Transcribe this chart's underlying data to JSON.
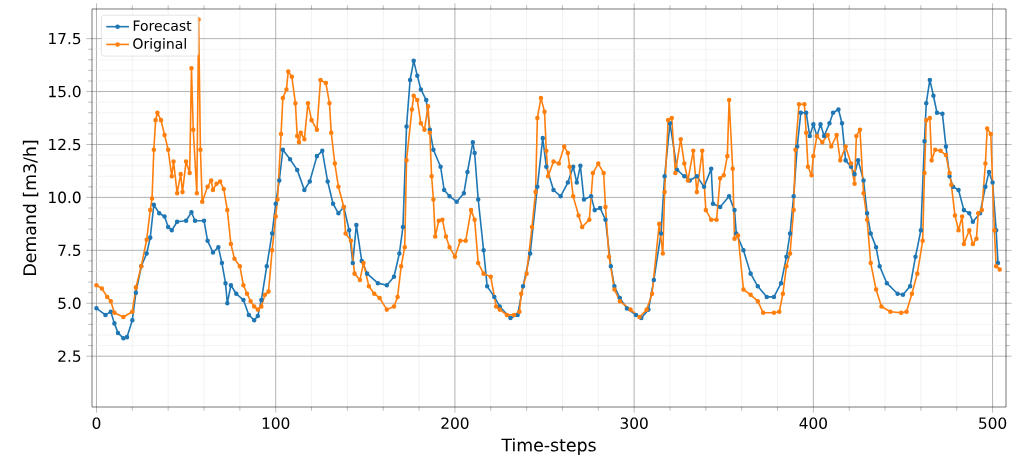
{
  "chart_data": {
    "type": "line",
    "xlabel": "Time-steps",
    "ylabel": "Demand [m3/h]",
    "xlim": [
      -2.5,
      507.5
    ],
    "ylim": [
      0.1,
      18.9
    ],
    "xticks": [
      0,
      100,
      200,
      300,
      400,
      500
    ],
    "yticks": [
      {
        "value": 2.5,
        "label": "2.5"
      },
      {
        "value": 5,
        "label": "5.0"
      },
      {
        "value": 7.5,
        "label": "7.5"
      },
      {
        "value": 10,
        "label": "10.0"
      },
      {
        "value": 12.5,
        "label": "12.5"
      },
      {
        "value": 15,
        "label": "15.0"
      },
      {
        "value": 17.5,
        "label": "17.5"
      }
    ],
    "grid": true,
    "legend": "top left",
    "marker": "circle",
    "line_style": "solid",
    "series": [
      {
        "name": "Forecast",
        "color": "#1f77b4",
        "x": [
          0,
          5,
          8,
          10,
          12,
          15,
          17,
          20,
          22,
          25,
          28,
          30,
          32,
          35,
          38,
          40,
          42,
          45,
          50,
          53,
          55,
          60,
          62,
          65,
          68,
          70,
          72,
          73,
          75,
          78,
          82,
          85,
          88,
          90,
          92,
          95,
          98,
          100,
          102,
          104,
          108,
          112,
          116,
          119,
          123,
          126,
          129,
          132,
          135,
          138,
          141,
          143,
          145,
          148,
          151,
          157,
          162,
          166,
          169,
          171,
          173,
          175,
          177,
          179,
          181,
          184,
          186,
          188,
          192,
          194,
          197,
          201,
          205,
          207,
          210,
          211,
          213,
          216,
          218,
          222,
          225,
          231,
          235,
          238,
          242,
          246,
          249,
          251,
          255,
          259,
          263,
          266,
          268,
          270,
          272,
          276,
          278,
          281,
          284,
          287,
          289,
          292,
          296,
          301,
          304,
          308,
          311,
          315,
          317,
          320,
          324,
          328,
          331,
          335,
          339,
          343,
          344,
          348,
          353,
          356,
          357,
          361,
          365,
          369,
          374,
          378,
          382,
          385,
          387,
          389,
          391,
          393,
          396,
          398,
          400,
          402,
          404,
          406,
          409,
          411,
          414,
          416,
          418,
          421,
          423,
          425,
          428,
          430,
          432,
          435,
          437,
          441,
          447,
          450,
          454,
          457,
          460,
          462,
          463,
          465,
          467,
          469,
          472,
          474,
          476,
          478,
          481,
          484,
          487,
          489,
          493,
          496,
          498,
          500,
          502,
          503
        ],
        "values": [
          4.76,
          4.45,
          4.6,
          4.05,
          3.6,
          3.35,
          3.4,
          4.2,
          5.5,
          6.75,
          7.35,
          8.1,
          9.65,
          9.25,
          9.1,
          8.6,
          8.45,
          8.85,
          8.9,
          9.3,
          8.9,
          8.9,
          7.95,
          7.4,
          7.65,
          6.9,
          5.95,
          5.0,
          5.85,
          5.45,
          5.15,
          4.45,
          4.2,
          4.4,
          5.15,
          6.75,
          8.3,
          9.7,
          10.8,
          12.25,
          11.8,
          11.3,
          10.35,
          10.75,
          11.95,
          12.2,
          10.75,
          9.7,
          9.25,
          9.55,
          8.45,
          6.9,
          8.7,
          7.0,
          6.4,
          5.95,
          5.85,
          6.25,
          7.35,
          8.6,
          13.35,
          15.55,
          16.45,
          15.75,
          15.1,
          14.6,
          13.2,
          12.25,
          11.45,
          10.35,
          10.05,
          9.8,
          10.2,
          11.2,
          12.6,
          12.1,
          9.9,
          7.5,
          5.8,
          5.3,
          4.85,
          4.3,
          4.45,
          5.8,
          7.35,
          10.5,
          12.8,
          11.45,
          10.35,
          10.05,
          10.7,
          11.45,
          10.7,
          11.5,
          9.9,
          10.05,
          9.4,
          9.5,
          8.95,
          6.75,
          5.8,
          5.25,
          4.75,
          4.45,
          4.3,
          4.7,
          6.1,
          8.3,
          11.0,
          13.5,
          11.3,
          11.0,
          10.8,
          11.0,
          10.5,
          11.35,
          9.7,
          9.55,
          10.05,
          9.4,
          8.3,
          7.5,
          6.4,
          5.8,
          5.3,
          5.3,
          5.95,
          7.2,
          8.3,
          10.05,
          12.4,
          14.0,
          14.0,
          12.9,
          13.45,
          12.9,
          13.45,
          12.9,
          13.5,
          14.0,
          14.15,
          13.5,
          11.75,
          11.45,
          11.1,
          11.75,
          10.8,
          9.25,
          8.3,
          7.65,
          6.75,
          5.95,
          5.45,
          5.4,
          5.8,
          7.2,
          8.45,
          12.65,
          14.45,
          15.55,
          14.8,
          14.0,
          13.95,
          12.4,
          11.0,
          10.5,
          10.35,
          9.4,
          9.25,
          8.85,
          9.25,
          10.5,
          11.2,
          10.7,
          8.45,
          6.9
        ]
      },
      {
        "name": "Original",
        "color": "#ff7f0e",
        "x": [
          0,
          3,
          6,
          8,
          10,
          15,
          20,
          22,
          25,
          28,
          30,
          31,
          32,
          33,
          34,
          36,
          38,
          40,
          42,
          43,
          45,
          47,
          48,
          50,
          52,
          53,
          54,
          56,
          57,
          58,
          59,
          62,
          64,
          65,
          67,
          69,
          71,
          73,
          75,
          77,
          80,
          82,
          84,
          86,
          88,
          90,
          92,
          94,
          96,
          98,
          100,
          101,
          103,
          104,
          106,
          107,
          109,
          111,
          112,
          113,
          114,
          116,
          118,
          120,
          123,
          125,
          128,
          130,
          131,
          133,
          135,
          138,
          139,
          142,
          144,
          147,
          149,
          152,
          155,
          158,
          162,
          166,
          168,
          170,
          172,
          173,
          176,
          177,
          179,
          181,
          183,
          185,
          186,
          187,
          188,
          189,
          191,
          193,
          195,
          197,
          200,
          203,
          206,
          209,
          211,
          213,
          216,
          220,
          223,
          225,
          229,
          233,
          236,
          237,
          240,
          243,
          245,
          246,
          248,
          250,
          251,
          252,
          255,
          258,
          261,
          263,
          264,
          266,
          269,
          271,
          275,
          277,
          280,
          283,
          284,
          286,
          289,
          292,
          298,
          303,
          307,
          310,
          314,
          316,
          317,
          319,
          321,
          323,
          326,
          328,
          330,
          333,
          335,
          338,
          340,
          343,
          346,
          348,
          350,
          352,
          353,
          355,
          356,
          358,
          361,
          365,
          369,
          372,
          378,
          381,
          383,
          385,
          387,
          389,
          390,
          392,
          395,
          396,
          397,
          399,
          400,
          402,
          405,
          408,
          410,
          413,
          415,
          418,
          421,
          423,
          424,
          426,
          428,
          430,
          432,
          435,
          438,
          443,
          449,
          452,
          455,
          458,
          461,
          462,
          463,
          465,
          466,
          468,
          471,
          474,
          476,
          477,
          479,
          481,
          483,
          484,
          487,
          489,
          491,
          492,
          494,
          496,
          497,
          499,
          501,
          502,
          504
        ],
        "values": [
          5.85,
          5.7,
          5.3,
          5.1,
          4.55,
          4.35,
          4.6,
          5.75,
          6.75,
          8.0,
          9.4,
          9.95,
          12.25,
          13.65,
          14.0,
          13.65,
          12.95,
          12.25,
          11.0,
          11.7,
          10.2,
          11.1,
          10.25,
          11.7,
          11.15,
          16.1,
          13.2,
          10.2,
          18.4,
          12.25,
          9.8,
          10.5,
          10.8,
          10.35,
          10.65,
          10.75,
          10.4,
          9.4,
          7.8,
          7.1,
          6.75,
          5.85,
          5.45,
          5.1,
          4.85,
          4.7,
          4.85,
          5.4,
          5.55,
          7.5,
          9.1,
          9.9,
          13.0,
          14.7,
          15.1,
          15.95,
          15.7,
          14.45,
          12.9,
          12.6,
          13.05,
          12.75,
          14.45,
          13.65,
          13.2,
          15.55,
          15.4,
          14.45,
          13.05,
          11.6,
          10.5,
          9.55,
          8.3,
          7.95,
          6.4,
          6.1,
          6.9,
          5.8,
          5.45,
          5.25,
          4.7,
          4.85,
          5.3,
          6.75,
          7.65,
          11.75,
          14.15,
          14.8,
          14.6,
          13.5,
          13.2,
          14.3,
          13.05,
          11.0,
          9.9,
          8.15,
          8.9,
          8.95,
          8.15,
          7.65,
          7.2,
          7.95,
          7.95,
          9.4,
          8.95,
          6.9,
          6.4,
          6.25,
          4.85,
          4.7,
          4.45,
          4.45,
          4.6,
          5.45,
          6.4,
          8.6,
          10.25,
          13.75,
          14.7,
          14.05,
          12.2,
          11.0,
          11.7,
          11.6,
          12.4,
          12.1,
          11.45,
          10.05,
          9.15,
          8.6,
          8.95,
          11.15,
          11.6,
          11.15,
          9.55,
          7.2,
          5.65,
          5.1,
          4.7,
          4.35,
          4.7,
          5.45,
          8.75,
          7.35,
          10.25,
          13.65,
          13.75,
          11.15,
          12.75,
          11.6,
          10.8,
          12.2,
          10.25,
          12.2,
          9.4,
          8.95,
          8.95,
          10.9,
          11.05,
          11.95,
          14.6,
          11.35,
          8.05,
          8.2,
          5.65,
          5.4,
          5.1,
          4.55,
          4.55,
          4.6,
          5.45,
          6.75,
          7.35,
          9.4,
          12.25,
          14.4,
          14.4,
          13.05,
          11.45,
          11.05,
          11.95,
          12.9,
          12.6,
          12.95,
          12.4,
          12.95,
          11.75,
          12.4,
          11.6,
          10.65,
          12.9,
          13.2,
          10.2,
          8.95,
          6.9,
          5.65,
          4.85,
          4.6,
          4.55,
          4.6,
          5.45,
          6.4,
          7.95,
          11.15,
          13.65,
          13.75,
          11.75,
          12.25,
          12.2,
          12.0,
          11.15,
          10.6,
          9.15,
          8.45,
          9.1,
          7.8,
          8.45,
          7.8,
          8.05,
          9.25,
          9.4,
          11.6,
          13.25,
          13.0,
          8.45,
          6.75,
          6.6
        ]
      }
    ]
  }
}
